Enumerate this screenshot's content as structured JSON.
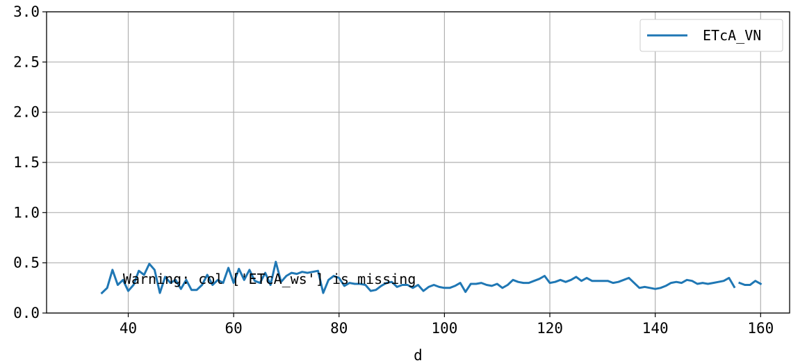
{
  "chart_data": {
    "type": "line",
    "title": "",
    "xlabel": "d",
    "ylabel": "",
    "xlim": [
      24.5,
      165.5
    ],
    "ylim": [
      0.0,
      3.0
    ],
    "xticks": [
      40,
      60,
      80,
      100,
      120,
      140,
      160
    ],
    "yticks": [
      0.0,
      0.5,
      1.0,
      1.5,
      2.0,
      2.5,
      3.0
    ],
    "ytick_labels": [
      "0.0",
      "0.5",
      "1.0",
      "1.5",
      "2.0",
      "2.5",
      "3.0"
    ],
    "grid": true,
    "legend_position": "top-right",
    "annotation": "Warning: col ['ETcA_ws'] is missing",
    "series": [
      {
        "name": "ETcA_VN",
        "color": "#1f77b4",
        "segments": [
          {
            "x": [
              35,
              36,
              37,
              38,
              39,
              40,
              41,
              42,
              43,
              44,
              45,
              46,
              47,
              48,
              49,
              50,
              51,
              52,
              53,
              54,
              55,
              56,
              57,
              58,
              59,
              60,
              61,
              62,
              63,
              64,
              65,
              66,
              67,
              68,
              69,
              70,
              71,
              72,
              73,
              74,
              75,
              76,
              77,
              78,
              79,
              80,
              81,
              82,
              83,
              84,
              85,
              86,
              87,
              88,
              89,
              90,
              91,
              92,
              93,
              94,
              95,
              96,
              97,
              98,
              99,
              100,
              101,
              102,
              103,
              104,
              105,
              106,
              107,
              108,
              109,
              110,
              111,
              112,
              113,
              114,
              115,
              116,
              117,
              118,
              119,
              120,
              121,
              122,
              123,
              124,
              125,
              126,
              127,
              128,
              129,
              130,
              131,
              132,
              133,
              134,
              135,
              136,
              137,
              138,
              139,
              140,
              141,
              142,
              143,
              144,
              145,
              146,
              147,
              148,
              149,
              150,
              151,
              152,
              153,
              154,
              155
            ],
            "y": [
              0.2,
              0.25,
              0.43,
              0.28,
              0.33,
              0.22,
              0.28,
              0.42,
              0.38,
              0.49,
              0.43,
              0.2,
              0.36,
              0.3,
              0.33,
              0.24,
              0.33,
              0.23,
              0.23,
              0.28,
              0.38,
              0.28,
              0.33,
              0.3,
              0.45,
              0.3,
              0.44,
              0.33,
              0.43,
              0.32,
              0.3,
              0.4,
              0.28,
              0.51,
              0.31,
              0.37,
              0.4,
              0.39,
              0.41,
              0.4,
              0.41,
              0.42,
              0.2,
              0.33,
              0.37,
              0.35,
              0.27,
              0.3,
              0.29,
              0.29,
              0.28,
              0.22,
              0.23,
              0.27,
              0.3,
              0.31,
              0.26,
              0.28,
              0.28,
              0.25,
              0.28,
              0.22,
              0.26,
              0.28,
              0.26,
              0.25,
              0.25,
              0.27,
              0.3,
              0.21,
              0.29,
              0.29,
              0.3,
              0.28,
              0.27,
              0.29,
              0.25,
              0.28,
              0.33,
              0.31,
              0.3,
              0.3,
              0.32,
              0.34,
              0.37,
              0.3,
              0.31,
              0.33,
              0.31,
              0.33,
              0.36,
              0.32,
              0.35,
              0.32,
              0.32,
              0.32,
              0.32,
              0.3,
              0.31,
              0.33,
              0.35,
              0.3,
              0.25,
              0.26,
              0.25,
              0.24,
              0.25,
              0.27,
              0.3,
              0.31,
              0.3,
              0.33,
              0.32,
              0.29,
              0.3,
              0.29,
              0.3,
              0.31,
              0.32,
              0.35,
              0.26
            ]
          },
          {
            "x": [
              156,
              157,
              158,
              159,
              160
            ],
            "y": [
              0.3,
              0.28,
              0.28,
              0.32,
              0.29
            ]
          }
        ]
      }
    ]
  }
}
